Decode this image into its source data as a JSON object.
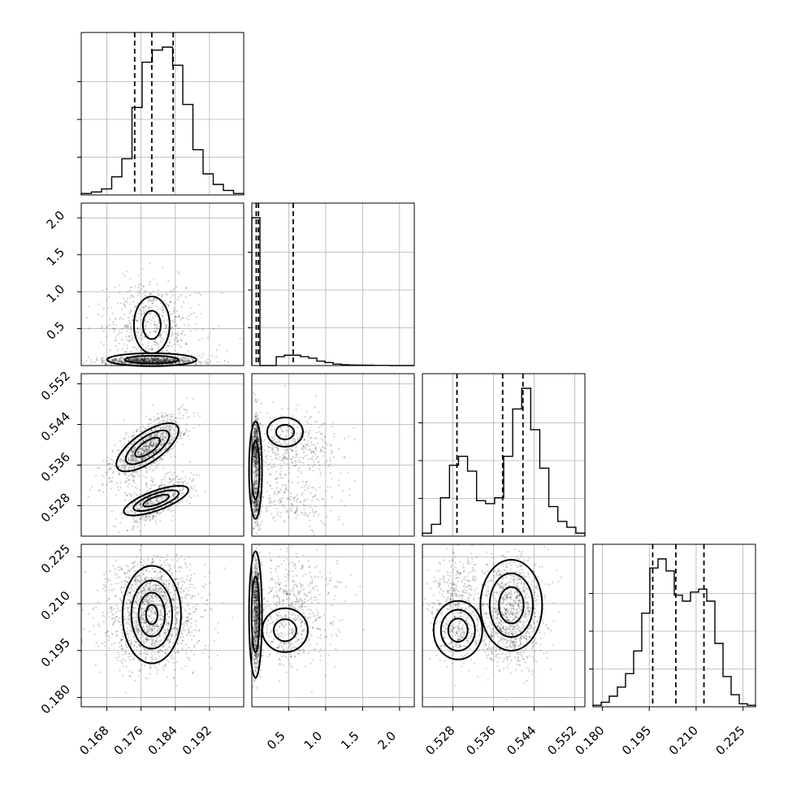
{
  "chart_data": {
    "type": "corner",
    "parameters": [
      {
        "ticks": [
          "0.168",
          "0.176",
          "0.184",
          "0.192"
        ],
        "tick_values": [
          0.168,
          0.176,
          0.184,
          0.192
        ],
        "range": [
          0.162,
          0.2
        ],
        "quantiles": [
          0.1745,
          0.1785,
          0.1835
        ],
        "hist": [
          1,
          2,
          4,
          12,
          24,
          58,
          88,
          96,
          98,
          86,
          60,
          30,
          14,
          7,
          3,
          1
        ]
      },
      {
        "ticks": [
          "0.5",
          "1.0",
          "1.5",
          "2.0"
        ],
        "tick_values": [
          0.5,
          1.0,
          1.5,
          2.0
        ],
        "range": [
          0.0,
          2.2
        ],
        "quantiles": [
          0.06,
          0.09,
          0.56
        ],
        "hist": [
          100,
          0,
          0,
          6,
          7,
          7,
          6,
          5,
          3,
          2,
          1,
          0.6,
          0.4,
          0.3,
          0.2,
          0.1,
          0.1,
          0,
          0,
          0
        ]
      },
      {
        "ticks": [
          "0.528",
          "0.536",
          "0.544",
          "0.552"
        ],
        "tick_values": [
          0.528,
          0.536,
          0.544,
          0.552
        ],
        "range": [
          0.522,
          0.554
        ],
        "quantiles": [
          0.5288,
          0.5378,
          0.5418
        ],
        "hist": [
          2,
          8,
          26,
          48,
          54,
          44,
          24,
          22,
          26,
          54,
          86,
          100,
          72,
          46,
          20,
          10,
          6,
          2
        ]
      },
      {
        "ticks": [
          "0.180",
          "0.195",
          "0.210",
          "0.225"
        ],
        "tick_values": [
          0.18,
          0.195,
          0.21,
          0.225
        ],
        "range": [
          0.177,
          0.229
        ],
        "quantiles": [
          0.1961,
          0.2035,
          0.2125
        ],
        "hist": [
          1,
          3,
          7,
          13,
          22,
          37,
          62,
          92,
          98,
          90,
          74,
          70,
          76,
          78,
          70,
          42,
          20,
          8,
          2,
          1
        ]
      }
    ],
    "grid": true,
    "quantile_lines": "dashed"
  }
}
